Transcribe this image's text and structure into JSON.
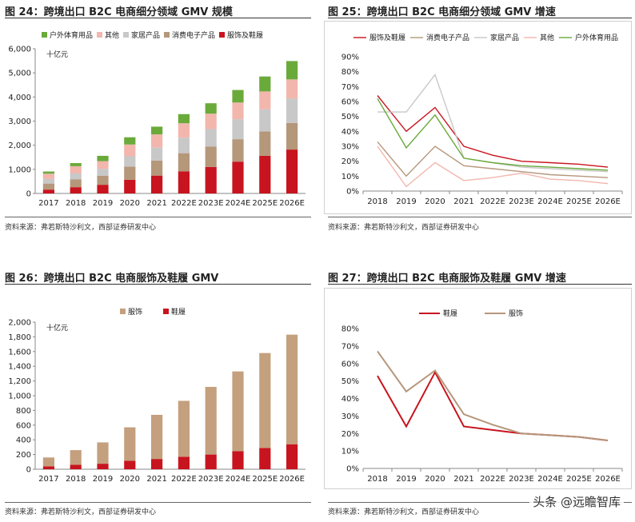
{
  "source_text": "资料来源：弗若斯特沙利文，西部证券研发中心",
  "watermark": "头条 @远瞻智库",
  "colors": {
    "outdoor": "#6aaa3a",
    "other": "#f2b6ad",
    "home": "#c8c8c8",
    "electronics": "#b5977a",
    "apparel": "#c8141e",
    "apparel_line": "#b5967a"
  },
  "chart_data": [
    {
      "id": "fig24",
      "label": "图 24：",
      "type": "bar",
      "stacked": true,
      "title": "跨境出口 B2C 电商细分领域 GMV 规模",
      "unit_label": "十亿元",
      "categories": [
        "2017",
        "2018",
        "2019",
        "2020",
        "2021",
        "2022E",
        "2023E",
        "2024E",
        "2025E",
        "2026E"
      ],
      "series": [
        {
          "name": "服饰及鞋履",
          "color": "#c8141e",
          "values": [
            160,
            260,
            360,
            570,
            740,
            920,
            1100,
            1320,
            1560,
            1820
          ]
        },
        {
          "name": "消费电子产品",
          "color": "#b5977a",
          "values": [
            250,
            320,
            370,
            540,
            620,
            750,
            840,
            930,
            1010,
            1100
          ]
        },
        {
          "name": "家居产品",
          "color": "#c8c8c8",
          "values": [
            190,
            250,
            290,
            430,
            540,
            640,
            730,
            830,
            920,
            1020
          ]
        },
        {
          "name": "其他",
          "color": "#f2b6ad",
          "values": [
            220,
            300,
            320,
            490,
            550,
            600,
            640,
            690,
            740,
            790
          ]
        },
        {
          "name": "户外体育用品",
          "color": "#6aaa3a",
          "values": [
            90,
            130,
            220,
            300,
            320,
            380,
            430,
            520,
            620,
            760
          ]
        }
      ],
      "legend_order": [
        "户外体育用品",
        "其他",
        "家居产品",
        "消费电子产品",
        "服饰及鞋履"
      ],
      "ylim": [
        0,
        6000
      ],
      "yticks": [
        0,
        1000,
        2000,
        3000,
        4000,
        5000,
        6000
      ],
      "ytick_labels": [
        "0",
        "1,000",
        "2,000",
        "3,000",
        "4,000",
        "5,000",
        "6,000"
      ]
    },
    {
      "id": "fig25",
      "label": "图 25：",
      "type": "line",
      "title": "跨境出口 B2C 电商细分领域 GMV 增速",
      "categories": [
        "2018",
        "2019",
        "2020",
        "2021",
        "2022E",
        "2023E",
        "2024E",
        "2025E",
        "2026E"
      ],
      "series": [
        {
          "name": "服饰及鞋履",
          "color": "#c8141e",
          "values": [
            64,
            40,
            56,
            30,
            24,
            20,
            19,
            18,
            16
          ]
        },
        {
          "name": "消费电子产品",
          "color": "#b5977a",
          "values": [
            33,
            10,
            30,
            17,
            15,
            13,
            11,
            10,
            9
          ]
        },
        {
          "name": "家居产品",
          "color": "#c8c8c8",
          "values": [
            53,
            53,
            78,
            22,
            19,
            16,
            15,
            14,
            13
          ]
        },
        {
          "name": "其他",
          "color": "#f2b6ad",
          "values": [
            30,
            3,
            19,
            7,
            9,
            12,
            8,
            7,
            5
          ]
        },
        {
          "name": "户外体育用品",
          "color": "#6aaa3a",
          "values": [
            62,
            29,
            51,
            22,
            19,
            17,
            16,
            15,
            14
          ]
        }
      ],
      "ylim": [
        0,
        90
      ],
      "yticks": [
        0,
        10,
        20,
        30,
        40,
        50,
        60,
        70,
        80,
        90
      ],
      "ytick_labels": [
        "0%",
        "10%",
        "20%",
        "30%",
        "40%",
        "50%",
        "60%",
        "70%",
        "80%",
        "90%"
      ]
    },
    {
      "id": "fig26",
      "label": "图 26：",
      "type": "bar",
      "stacked": true,
      "title": "跨境出口 B2C 电商服饰及鞋履 GMV",
      "unit_label": "十亿元",
      "categories": [
        "2017",
        "2018",
        "2019",
        "2020",
        "2021",
        "2022E",
        "2023E",
        "2024E",
        "2025E",
        "2026E"
      ],
      "series": [
        {
          "name": "鞋履",
          "color": "#c8141e",
          "values": [
            40,
            60,
            75,
            115,
            140,
            170,
            200,
            245,
            290,
            340
          ]
        },
        {
          "name": "服饰",
          "color": "#c4a07e",
          "values": [
            120,
            200,
            290,
            455,
            600,
            760,
            920,
            1085,
            1290,
            1490
          ]
        }
      ],
      "legend_order": [
        "服饰",
        "鞋履"
      ],
      "ylim": [
        0,
        2000
      ],
      "yticks": [
        0,
        200,
        400,
        600,
        800,
        1000,
        1200,
        1400,
        1600,
        1800,
        2000
      ],
      "ytick_labels": [
        "0",
        "200",
        "400",
        "600",
        "800",
        "1,000",
        "1,200",
        "1,400",
        "1,600",
        "1,800",
        "2,000"
      ]
    },
    {
      "id": "fig27",
      "label": "图 27：",
      "type": "line",
      "title": "跨境出口 B2C 电商服饰及鞋履 GMV 增速",
      "categories": [
        "2018",
        "2019",
        "2020",
        "2021",
        "2022E",
        "2023E",
        "2024E",
        "2025E",
        "2026E"
      ],
      "series": [
        {
          "name": "鞋履",
          "color": "#c8141e",
          "values": [
            53,
            24,
            55,
            24,
            22,
            20,
            19,
            18,
            16
          ]
        },
        {
          "name": "服饰",
          "color": "#b5967a",
          "values": [
            67,
            44,
            56,
            31,
            25,
            20,
            19,
            18,
            16
          ]
        }
      ],
      "ylim": [
        0,
        80
      ],
      "yticks": [
        0,
        10,
        20,
        30,
        40,
        50,
        60,
        70,
        80
      ],
      "ytick_labels": [
        "0%",
        "10%",
        "20%",
        "30%",
        "40%",
        "50%",
        "60%",
        "70%",
        "80%"
      ]
    }
  ]
}
